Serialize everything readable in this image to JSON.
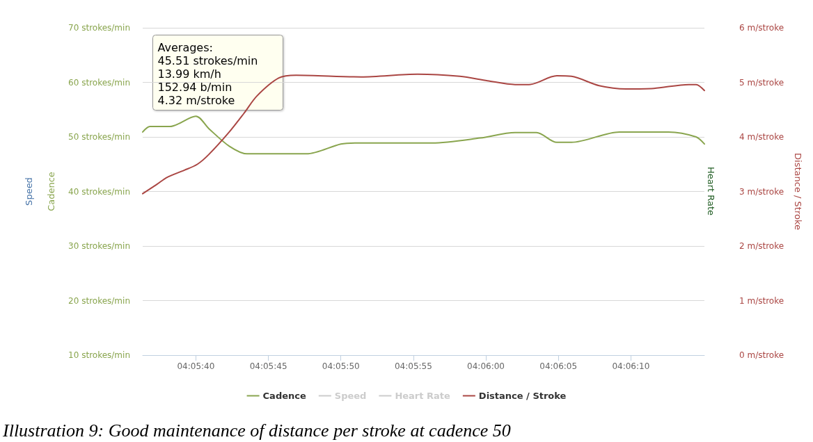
{
  "chart_data": {
    "type": "line",
    "ylabel": "Cadence",
    "y2label": "Distance / Stroke",
    "y3label": "Speed",
    "xlim": [
      4.09342,
      4.10419
    ],
    "xticks": [
      {
        "value": 4.09444,
        "label": "04:05:40"
      },
      {
        "value": 4.09583,
        "label": "04:05:45"
      },
      {
        "value": 4.09722,
        "label": "04:05:50"
      },
      {
        "value": 4.09861,
        "label": "04:05:55"
      },
      {
        "value": 4.1,
        "label": "04:06:00"
      },
      {
        "value": 4.10139,
        "label": "04:06:05"
      },
      {
        "value": 4.10278,
        "label": "04:06:10"
      }
    ],
    "ylim": [
      10,
      70
    ],
    "yticks": [
      {
        "value": 10,
        "label": "10 strokes/min"
      },
      {
        "value": 20,
        "label": "20 strokes/min"
      },
      {
        "value": 30,
        "label": "30 strokes/min"
      },
      {
        "value": 40,
        "label": "40 strokes/min"
      },
      {
        "value": 50,
        "label": "50 strokes/min"
      },
      {
        "value": 60,
        "label": "60 strokes/min"
      },
      {
        "value": 70,
        "label": "70 strokes/min"
      }
    ],
    "y2lim": [
      0,
      6
    ],
    "y2ticks": [
      {
        "value": 0,
        "label": "0 m/stroke"
      },
      {
        "value": 1,
        "label": "1 m/stroke"
      },
      {
        "value": 2,
        "label": "2 m/stroke"
      },
      {
        "value": 3,
        "label": "3 m/stroke"
      },
      {
        "value": 4,
        "label": "4 m/stroke"
      },
      {
        "value": 5,
        "label": "5 m/stroke"
      },
      {
        "value": 6,
        "label": "6 m/stroke"
      }
    ],
    "series": [
      {
        "name": "Cadence",
        "color": "#89a54e",
        "x": [
          4.09342,
          4.09356,
          4.09394,
          4.09444,
          4.09469,
          4.09508,
          4.09542,
          4.09656,
          4.09722,
          4.0975,
          4.09897,
          4.09989,
          4.10056,
          4.10097,
          4.10136,
          4.10164,
          4.10256,
          4.1035,
          4.10403,
          4.10419
        ],
        "values": [
          50.9,
          51.9,
          51.9,
          53.8,
          51.5,
          48.3,
          46.9,
          46.9,
          48.7,
          48.9,
          48.9,
          49.8,
          50.8,
          50.8,
          49.0,
          49.0,
          50.9,
          50.9,
          50.0,
          48.7
        ]
      },
      {
        "name": "Speed",
        "color": "#cccccc"
      },
      {
        "name": "Heart Rate",
        "color": "#cccccc"
      },
      {
        "name": "Distance / Stroke",
        "color": "#aa4643",
        "axis": "y2",
        "x": [
          4.09342,
          4.09369,
          4.09389,
          4.09422,
          4.09447,
          4.09469,
          4.09508,
          4.09536,
          4.09561,
          4.09603,
          4.09636,
          4.09761,
          4.09869,
          4.0995,
          4.10003,
          4.10056,
          4.10083,
          4.10136,
          4.10164,
          4.10217,
          4.10269,
          4.10322,
          4.10389,
          4.10403,
          4.10419
        ],
        "values": [
          2.96,
          3.13,
          3.26,
          3.39,
          3.5,
          3.68,
          4.09,
          4.43,
          4.75,
          5.08,
          5.13,
          5.1,
          5.15,
          5.11,
          5.03,
          4.96,
          4.96,
          5.12,
          5.11,
          4.94,
          4.88,
          4.89,
          4.96,
          4.96,
          4.85
        ]
      }
    ],
    "grid": "y",
    "legend": "bottom",
    "marker": "none",
    "line_style": "solid",
    "annotations": [
      "Averages:\n45.51 strokes/min\n13.99 km/h\n152.94 b/min\n4.32 m/stroke",
      "Illustration 9: Good maintenance of distance per stroke at cadence 50",
      "Heart Rate"
    ]
  }
}
